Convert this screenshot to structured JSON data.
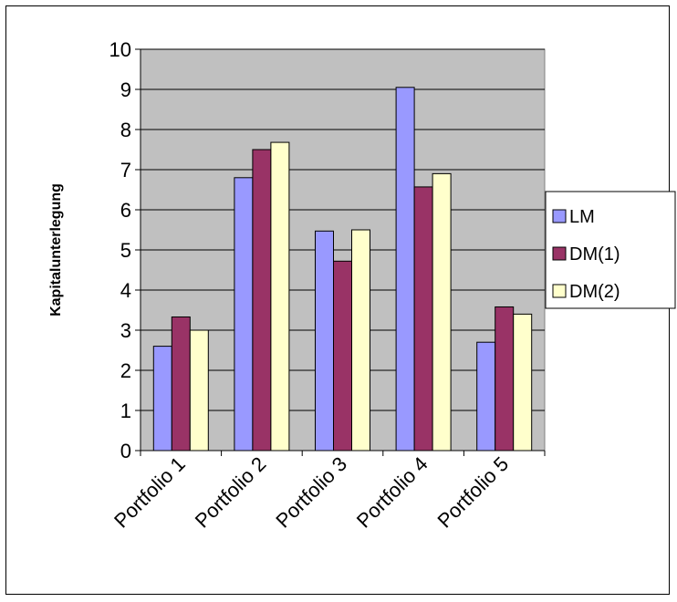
{
  "chart_data": {
    "type": "bar",
    "title": "",
    "xlabel": "",
    "ylabel": "Kapitalunterlegung",
    "ylim": [
      0,
      10
    ],
    "yticks": [
      0,
      1,
      2,
      3,
      4,
      5,
      6,
      7,
      8,
      9,
      10
    ],
    "grid": true,
    "legend_position": "right",
    "categories": [
      "Portfolio 1",
      "Portfolio 2",
      "Portfolio 3",
      "Portfolio 4",
      "Portfolio 5"
    ],
    "series": [
      {
        "name": "LM",
        "color": "#9999ff",
        "values": [
          2.6,
          6.8,
          5.47,
          9.05,
          2.7
        ]
      },
      {
        "name": "DM(1)",
        "color": "#993366",
        "values": [
          3.33,
          7.5,
          4.72,
          6.57,
          3.58
        ]
      },
      {
        "name": "DM(2)",
        "color": "#ffffcc",
        "values": [
          3.0,
          7.68,
          5.5,
          6.9,
          3.4
        ]
      }
    ],
    "plot_background": "#c0c0c0"
  }
}
